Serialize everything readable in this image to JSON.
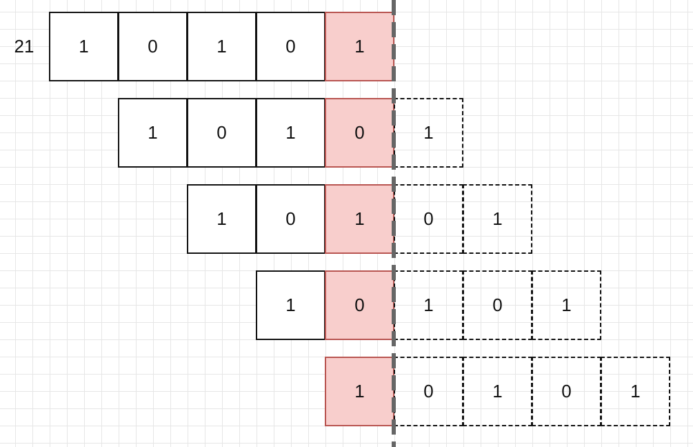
{
  "row_label": "21",
  "rows": [
    {
      "offset": 0,
      "solid": [
        "1",
        "0",
        "1",
        "0",
        "1"
      ],
      "dashed": []
    },
    {
      "offset": 1,
      "solid": [
        "1",
        "0",
        "1",
        "0"
      ],
      "dashed": [
        "1"
      ]
    },
    {
      "offset": 2,
      "solid": [
        "1",
        "0",
        "1"
      ],
      "dashed": [
        "0",
        "1"
      ]
    },
    {
      "offset": 3,
      "solid": [
        "1",
        "0"
      ],
      "dashed": [
        "1",
        "0",
        "1"
      ]
    },
    {
      "offset": 4,
      "solid": [
        "1"
      ],
      "dashed": [
        "0",
        "1",
        "0",
        "1"
      ]
    }
  ],
  "colors": {
    "highlight_fill": "#f8cecc",
    "highlight_stroke": "#b85450",
    "divider": "#666666"
  }
}
